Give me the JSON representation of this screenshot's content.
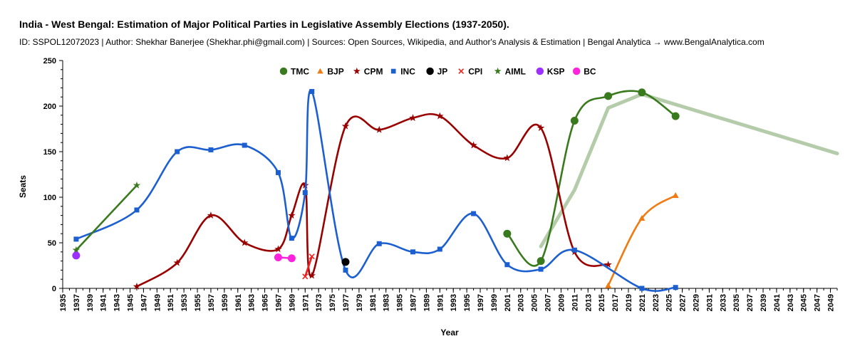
{
  "header": {
    "title": "India - West Bengal: Estimation of Major Political Parties in Legislative Assembly Elections (1937-2050).",
    "subtitle": "ID: SSPOL12072023 | Author: Shekhar Banerjee (Shekhar.phi@gmail.com) | Sources: Open Sources, Wikipedia, and Author's Analysis & Estimation | Bengal Analytica → www.BengalAnalytica.com"
  },
  "chart_data": {
    "type": "line",
    "title": "India - West Bengal: Estimation of Major Political Parties in Legislative Assembly Elections (1937-2050).",
    "xlabel": "Year",
    "ylabel": "Seats",
    "xlim": [
      1935,
      2050
    ],
    "ylim": [
      0,
      250
    ],
    "x_ticks": [
      1935,
      1937,
      1939,
      1941,
      1943,
      1945,
      1947,
      1949,
      1951,
      1953,
      1955,
      1957,
      1959,
      1961,
      1963,
      1965,
      1967,
      1969,
      1971,
      1973,
      1975,
      1977,
      1979,
      1981,
      1983,
      1985,
      1987,
      1989,
      1991,
      1993,
      1995,
      1997,
      1999,
      2001,
      2003,
      2005,
      2007,
      2009,
      2011,
      2013,
      2015,
      2017,
      2019,
      2021,
      2023,
      2025,
      2027,
      2029,
      2031,
      2033,
      2035,
      2037,
      2039,
      2041,
      2043,
      2045,
      2047,
      2049
    ],
    "y_ticks": [
      0,
      50,
      100,
      150,
      200,
      250
    ],
    "grid": false,
    "legend_position": "top-center",
    "series": [
      {
        "name": "TMC",
        "color": "#3a7a1e",
        "marker": "circle",
        "x": [
          2001,
          2006,
          2011,
          2016,
          2021,
          2026
        ],
        "y": [
          60,
          30,
          184,
          211,
          215,
          189
        ]
      },
      {
        "name": "BJP",
        "color": "#f07b12",
        "marker": "triangle",
        "x": [
          2016,
          2021,
          2026
        ],
        "y": [
          3,
          77,
          102
        ]
      },
      {
        "name": "CPM",
        "color": "#990000",
        "marker": "star",
        "x": [
          1946,
          1952,
          1957,
          1962,
          1967,
          1969,
          1971,
          1972,
          1977,
          1982,
          1987,
          1991,
          1996,
          2001,
          2006,
          2011,
          2016
        ],
        "y": [
          2,
          28,
          80,
          50,
          43,
          80,
          113,
          14,
          178,
          174,
          187,
          189,
          157,
          143,
          176,
          40,
          26
        ]
      },
      {
        "name": "INC",
        "color": "#1c5fd0",
        "marker": "square",
        "x": [
          1937,
          1946,
          1952,
          1957,
          1962,
          1967,
          1969,
          1971,
          1972,
          1977,
          1982,
          1987,
          1991,
          1996,
          2001,
          2006,
          2011,
          2021,
          2026
        ],
        "y": [
          54,
          86,
          150,
          152,
          157,
          127,
          55,
          105,
          216,
          20,
          49,
          40,
          43,
          82,
          26,
          21,
          42,
          0,
          1
        ]
      },
      {
        "name": "JP",
        "color": "#000000",
        "marker": "circle",
        "x": [
          1977
        ],
        "y": [
          29
        ]
      },
      {
        "name": "CPI",
        "color": "#ee2222",
        "marker": "x",
        "x": [
          1971,
          1972
        ],
        "y": [
          13,
          35
        ]
      },
      {
        "name": "AIML",
        "color": "#3a7a1e",
        "marker": "star",
        "x": [
          1937,
          1946
        ],
        "y": [
          42,
          113
        ]
      },
      {
        "name": "KSP",
        "color": "#9b30ff",
        "marker": "circle",
        "x": [
          1937
        ],
        "y": [
          36
        ]
      },
      {
        "name": "BC",
        "color": "#ff22dd",
        "marker": "circle",
        "x": [
          1967,
          1969
        ],
        "y": [
          34,
          33
        ]
      },
      {
        "name": "",
        "color": "#b5ccaa",
        "marker": "none",
        "x": [
          2006,
          2011,
          2016,
          2021,
          2050
        ],
        "y": [
          46,
          108,
          198,
          213,
          148
        ]
      }
    ]
  }
}
